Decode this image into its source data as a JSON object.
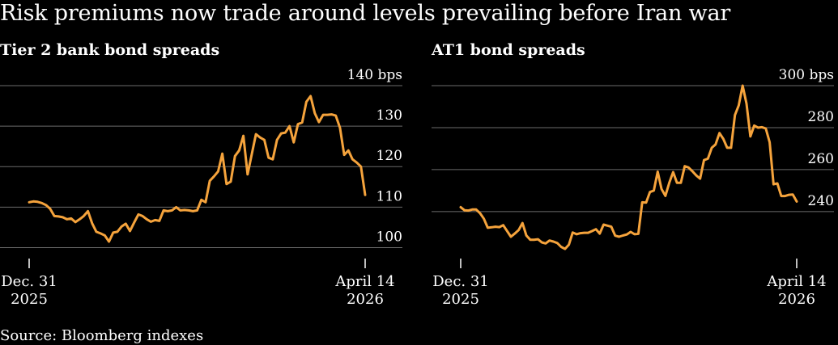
{
  "title": "Risk premiums now trade around levels prevailing before Iran war",
  "source": "Source: Bloomberg indexes",
  "colors": {
    "background": "#000000",
    "line": "#f5a33c",
    "grid": "#6b6b6b",
    "text": "#ffffff"
  },
  "chart_data": [
    {
      "type": "line",
      "title": "Tier 2 bank bond spreads",
      "unit": "bps",
      "ylim": [
        97.5,
        140
      ],
      "yticks": [
        100,
        110,
        120,
        130,
        140
      ],
      "ytick_labels": [
        "100",
        "110",
        "120",
        "130",
        "140 bps"
      ],
      "xtick_labels": [
        [
          "Dec. 31",
          "2025"
        ],
        [
          "April 14",
          "2026"
        ]
      ],
      "x_range": [
        "2025-12-31",
        "2026-04-14"
      ],
      "values": [
        111.2,
        111.4,
        111.3,
        111.0,
        110.5,
        109.6,
        107.8,
        107.7,
        107.5,
        107.0,
        107.2,
        106.3,
        107.0,
        107.8,
        109.0,
        106.0,
        103.9,
        103.5,
        103.0,
        101.5,
        103.7,
        103.9,
        105.2,
        105.9,
        104.1,
        106.2,
        108.2,
        107.8,
        107.0,
        106.4,
        106.8,
        106.6,
        109.2,
        109.0,
        109.2,
        110.0,
        109.2,
        109.3,
        109.2,
        109.0,
        109.2,
        111.8,
        111.2,
        116.5,
        117.6,
        118.8,
        123.2,
        115.7,
        116.3,
        122.6,
        124.0,
        127.6,
        118.1,
        123.0,
        128.0,
        127.2,
        126.6,
        122.2,
        121.8,
        126.6,
        128.2,
        128.4,
        130.0,
        126.0,
        130.5,
        130.9,
        136.0,
        137.4,
        133.2,
        131.0,
        132.8,
        132.8,
        132.9,
        132.6,
        129.6,
        122.9,
        124.0,
        121.8,
        121.0,
        120.0,
        113.0
      ]
    },
    {
      "type": "line",
      "title": "AT1 bond spreads",
      "unit": "bps",
      "ylim": [
        218,
        300
      ],
      "yticks": [
        240,
        260,
        280,
        300
      ],
      "ytick_labels": [
        "240",
        "260",
        "280",
        "300 bps"
      ],
      "xtick_labels": [
        [
          "Dec. 31",
          "2025"
        ],
        [
          "April 14",
          "2026"
        ]
      ],
      "x_range": [
        "2025-12-31",
        "2026-04-14"
      ],
      "values": [
        242.1,
        240.6,
        240.5,
        241.0,
        241.0,
        239.2,
        236.6,
        232.3,
        232.5,
        232.8,
        232.6,
        233.5,
        230.8,
        228.0,
        229.5,
        231.2,
        234.5,
        228.6,
        226.6,
        226.6,
        226.8,
        225.3,
        224.8,
        226.2,
        225.7,
        225.0,
        223.2,
        222.2,
        224.2,
        230.0,
        229.2,
        229.7,
        229.9,
        229.9,
        230.7,
        231.6,
        229.5,
        233.8,
        233.3,
        232.8,
        228.5,
        228.0,
        228.6,
        229.1,
        230.3,
        229.2,
        229.4,
        244.4,
        244.3,
        249.3,
        250.0,
        259.0,
        250.8,
        247.5,
        253.7,
        258.8,
        253.7,
        253.7,
        261.6,
        261.0,
        259.2,
        257.2,
        255.7,
        264.5,
        265.2,
        270.4,
        272.0,
        277.4,
        274.6,
        270.4,
        270.4,
        286.0,
        290.6,
        300.0,
        291.4,
        275.8,
        281.0,
        280.0,
        280.2,
        279.6,
        273.0,
        253.0,
        253.4,
        247.4,
        247.4,
        248.0,
        248.1,
        244.8
      ]
    }
  ]
}
